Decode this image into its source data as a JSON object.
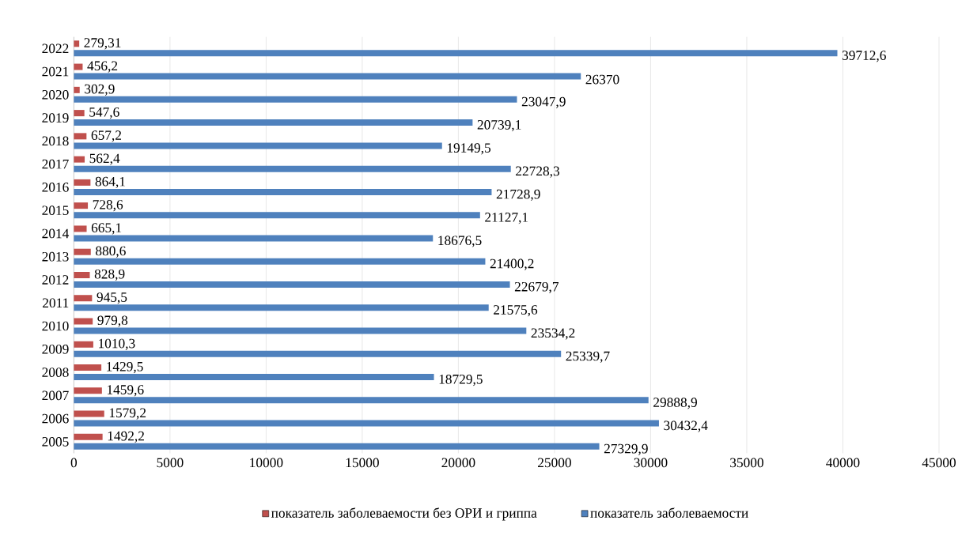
{
  "chart_data": {
    "type": "bar",
    "orientation": "horizontal",
    "categories": [
      "2022",
      "2021",
      "2020",
      "2019",
      "2018",
      "2017",
      "2016",
      "2015",
      "2014",
      "2013",
      "2012",
      "2011",
      "2010",
      "2009",
      "2008",
      "2007",
      "2006",
      "2005"
    ],
    "series": [
      {
        "name": "показатель заболеваемости без ОРИ и гриппа",
        "color": "#c0504d",
        "values": [
          279.31,
          456.2,
          302.9,
          547.6,
          657.2,
          562.4,
          864.1,
          728.6,
          665.1,
          880.6,
          828.9,
          945.5,
          979.8,
          1010.3,
          1429.5,
          1459.6,
          1579.2,
          1492.2
        ],
        "value_labels": [
          "279,31",
          "456,2",
          "302,9",
          "547,6",
          "657,2",
          "562,4",
          "864,1",
          "728,6",
          "665,1",
          "880,6",
          "828,9",
          "945,5",
          "979,8",
          "1010,3",
          "1429,5",
          "1459,6",
          "1579,2",
          "1492,2"
        ]
      },
      {
        "name": "показатель заболеваемости",
        "color": "#4f81bd",
        "values": [
          39712.6,
          26370,
          23047.9,
          20739.1,
          19149.5,
          22728.3,
          21728.9,
          21127.1,
          18676.5,
          21400.2,
          22679.7,
          21575.6,
          23534.2,
          25339.7,
          18729.5,
          29888.9,
          30432.4,
          27329.9
        ],
        "value_labels": [
          "39712,6",
          "26370",
          "23047,9",
          "20739,1",
          "19149,5",
          "22728,3",
          "21728,9",
          "21127,1",
          "18676,5",
          "21400,2",
          "22679,7",
          "21575,6",
          "23534,2",
          "25339,7",
          "18729,5",
          "29888,9",
          "30432,4",
          "27329,9"
        ]
      }
    ],
    "xlim": [
      0,
      45000
    ],
    "xticks": [
      0,
      5000,
      10000,
      15000,
      20000,
      25000,
      30000,
      35000,
      40000,
      45000
    ],
    "grid": "x",
    "legend": "bottom"
  }
}
